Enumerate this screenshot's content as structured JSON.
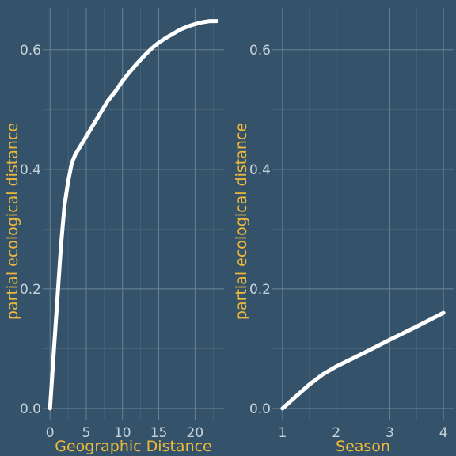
{
  "chart_data": [
    {
      "type": "line",
      "xlabel": "Geographic Distance",
      "ylabel": "partial ecological distance",
      "xlim": [
        -1,
        24
      ],
      "ylim": [
        -0.02,
        0.67
      ],
      "xticks": [
        0,
        5,
        10,
        15,
        20
      ],
      "yticks": [
        0.0,
        0.2,
        0.4,
        0.6
      ],
      "xtick_labels": [
        "0",
        "5",
        "10",
        "15",
        "20"
      ],
      "ytick_labels": [
        "0.0",
        "0.2",
        "0.4",
        "0.6"
      ],
      "grid": true,
      "series": [
        {
          "x": [
            0,
            0.5,
            1,
            1.5,
            2,
            2.5,
            3,
            3.5,
            4,
            5,
            6,
            7,
            8,
            9,
            10,
            11,
            12,
            13,
            14,
            15,
            16,
            17,
            18,
            19,
            20,
            21,
            22,
            23
          ],
          "y": [
            0.0,
            0.09,
            0.18,
            0.27,
            0.34,
            0.38,
            0.41,
            0.425,
            0.435,
            0.455,
            0.475,
            0.495,
            0.515,
            0.53,
            0.548,
            0.563,
            0.577,
            0.59,
            0.602,
            0.612,
            0.62,
            0.627,
            0.634,
            0.639,
            0.643,
            0.646,
            0.648,
            0.648
          ]
        }
      ]
    },
    {
      "type": "line",
      "xlabel": "Season",
      "ylabel": "partial ecological distance",
      "xlim": [
        0.81,
        4.19
      ],
      "ylim": [
        -0.02,
        0.67
      ],
      "xticks": [
        1,
        2,
        3,
        4
      ],
      "yticks": [
        0.0,
        0.2,
        0.4,
        0.6
      ],
      "xtick_labels": [
        "1",
        "2",
        "3",
        "4"
      ],
      "ytick_labels": [
        "0.0",
        "0.2",
        "0.4",
        "0.6"
      ],
      "grid": true,
      "series": [
        {
          "x": [
            1,
            1.25,
            1.5,
            1.75,
            2,
            2.5,
            3,
            3.5,
            4
          ],
          "y": [
            0.0,
            0.02,
            0.04,
            0.057,
            0.07,
            0.092,
            0.115,
            0.137,
            0.16
          ]
        }
      ]
    }
  ]
}
